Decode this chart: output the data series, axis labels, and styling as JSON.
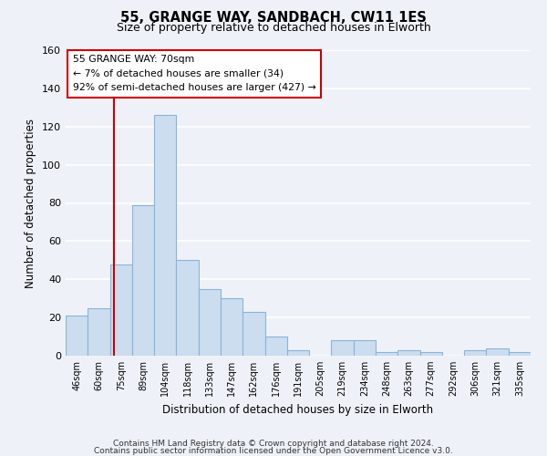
{
  "title": "55, GRANGE WAY, SANDBACH, CW11 1ES",
  "subtitle": "Size of property relative to detached houses in Elworth",
  "xlabel": "Distribution of detached houses by size in Elworth",
  "ylabel": "Number of detached properties",
  "categories": [
    "46sqm",
    "60sqm",
    "75sqm",
    "89sqm",
    "104sqm",
    "118sqm",
    "133sqm",
    "147sqm",
    "162sqm",
    "176sqm",
    "191sqm",
    "205sqm",
    "219sqm",
    "234sqm",
    "248sqm",
    "263sqm",
    "277sqm",
    "292sqm",
    "306sqm",
    "321sqm",
    "335sqm"
  ],
  "values": [
    21,
    25,
    48,
    79,
    126,
    50,
    35,
    30,
    23,
    10,
    3,
    0,
    8,
    8,
    2,
    3,
    2,
    0,
    3,
    4,
    2
  ],
  "bar_color": "#ccddf0",
  "bar_edge_color": "#8ab4d8",
  "background_color": "#eef2f8",
  "grid_color": "#ffffff",
  "ylim": [
    0,
    160
  ],
  "yticks": [
    0,
    20,
    40,
    60,
    80,
    100,
    120,
    140,
    160
  ],
  "annotation_title": "55 GRANGE WAY: 70sqm",
  "annotation_line1": "← 7% of detached houses are smaller (34)",
  "annotation_line2": "92% of semi-detached houses are larger (427) →",
  "annotation_box_color": "#ffffff",
  "annotation_box_edge": "#cc0000",
  "footer1": "Contains HM Land Registry data © Crown copyright and database right 2024.",
  "footer2": "Contains public sector information licensed under the Open Government Licence v3.0."
}
